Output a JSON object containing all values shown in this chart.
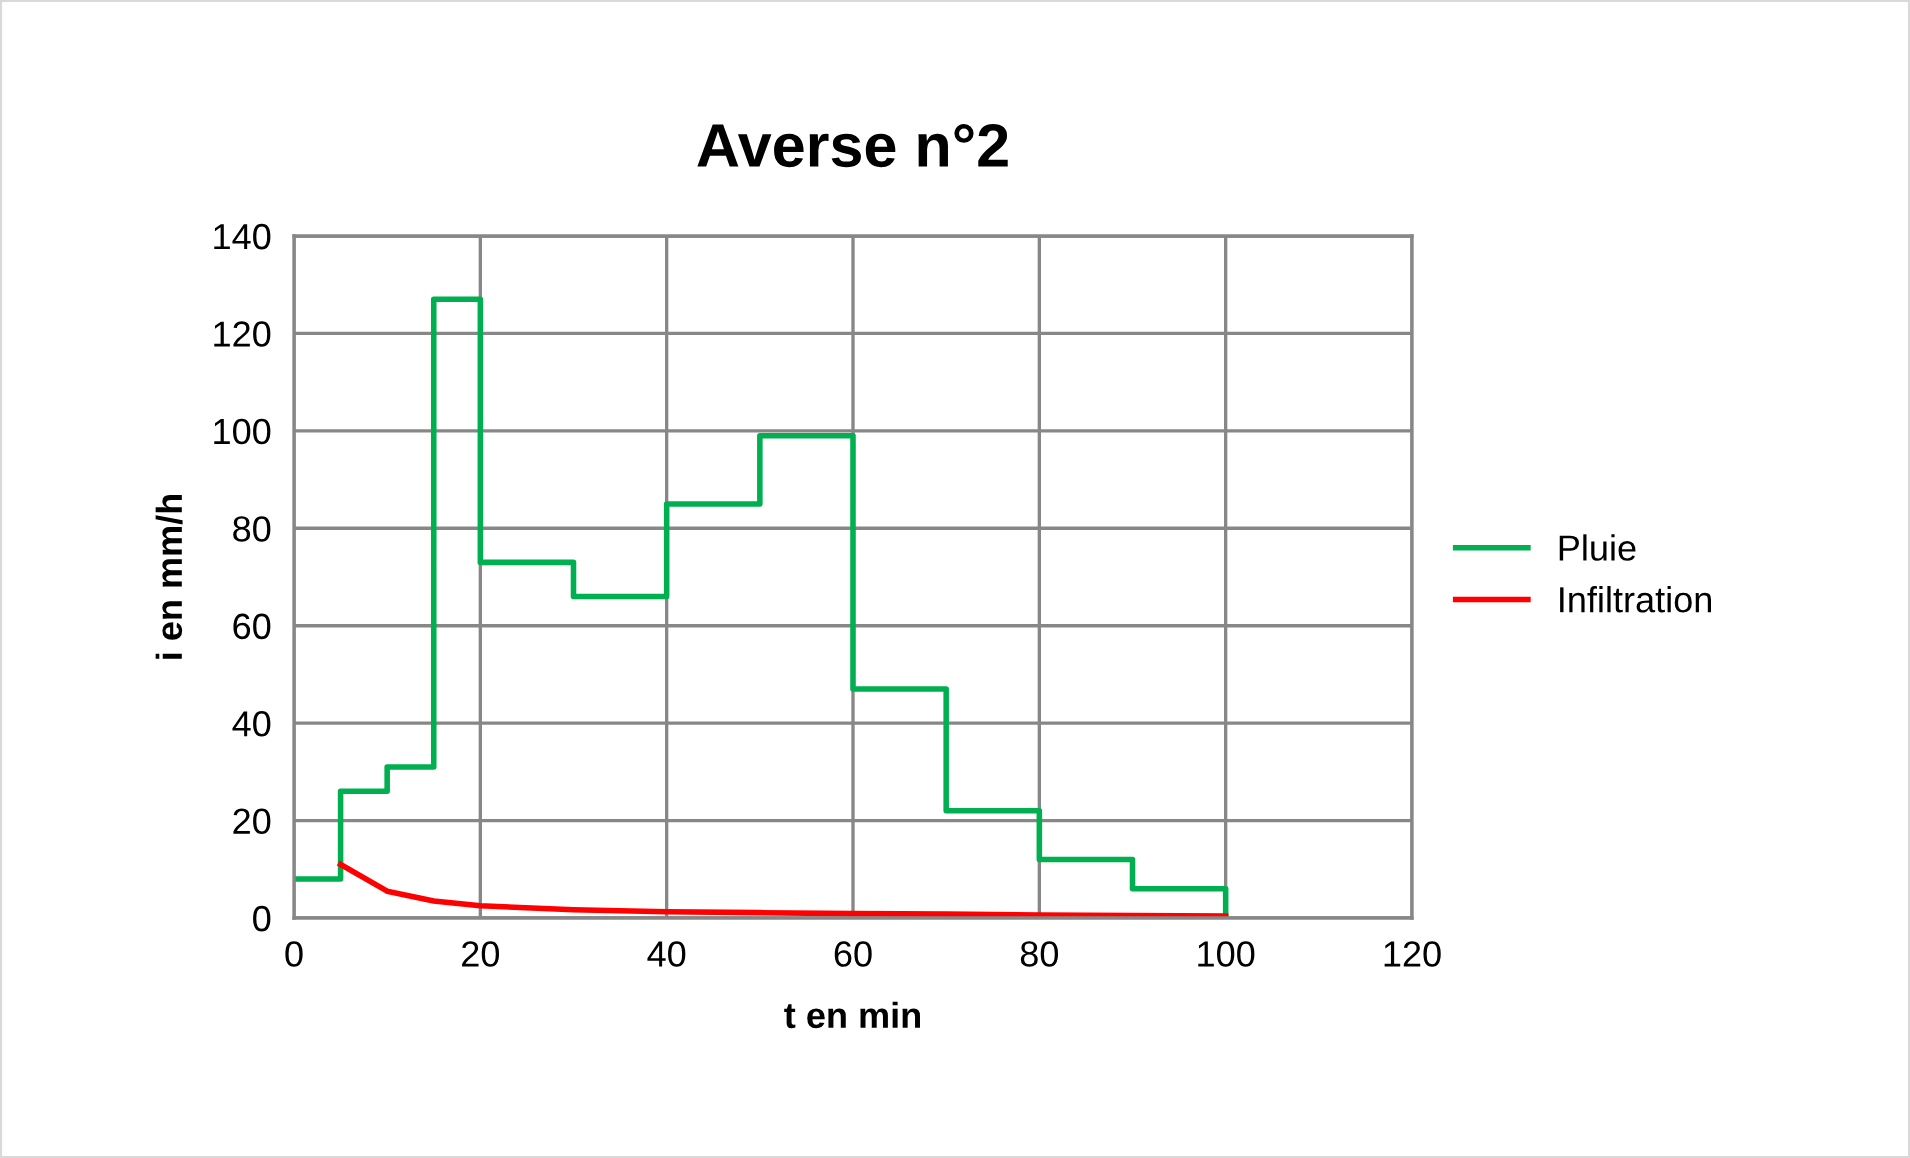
{
  "chart_data": {
    "type": "step",
    "title": "Averse n°2",
    "xlabel": "t en min",
    "ylabel": "i en mm/h",
    "series": [
      {
        "name": "Pluie",
        "color": "#00b050",
        "x": [
          0,
          5,
          10,
          15,
          20,
          30,
          40,
          50,
          60,
          70,
          80,
          90,
          100
        ],
        "values": [
          8,
          26,
          31,
          127,
          73,
          66,
          85,
          99,
          47,
          22,
          12,
          6,
          0
        ]
      },
      {
        "name": "Infiltration",
        "type": "line",
        "color": "#ff0000",
        "x": [
          5,
          10,
          15,
          20,
          30,
          40,
          50,
          60,
          70,
          80,
          90,
          100
        ],
        "values": [
          11,
          5.5,
          3.5,
          2.5,
          1.7,
          1.3,
          1.1,
          0.9,
          0.8,
          0.6,
          0.5,
          0.4
        ]
      }
    ],
    "xlim": [
      0,
      120
    ],
    "xticks": [
      0,
      20,
      40,
      60,
      80,
      100,
      120
    ],
    "ylim": [
      0,
      140
    ],
    "yticks": [
      0,
      20,
      40,
      60,
      80,
      100,
      120,
      140
    ],
    "grid": true,
    "legend": "right",
    "marker": "none",
    "line_style": "solid"
  }
}
